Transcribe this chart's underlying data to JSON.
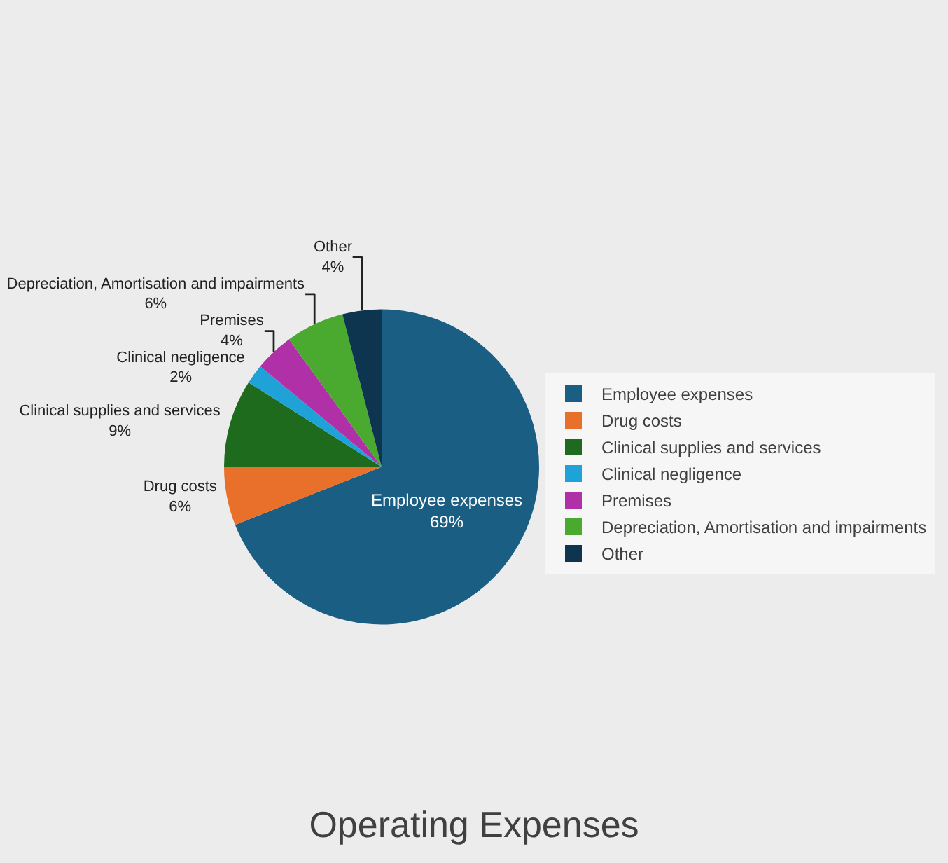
{
  "chart_data": {
    "type": "pie",
    "title": "Operating Expenses",
    "categories": [
      "Employee expenses",
      "Drug costs",
      "Clinical supplies and services",
      "Clinical negligence",
      "Premises",
      "Depreciation, Amortisation and impairments",
      "Other"
    ],
    "values": [
      69,
      6,
      9,
      2,
      4,
      6,
      4
    ],
    "value_labels": [
      "69%",
      "6%",
      "9%",
      "2%",
      "4%",
      "6%",
      "4%"
    ],
    "colors": [
      "#1b5e83",
      "#e8702a",
      "#1e6b1e",
      "#1fa2d8",
      "#b030a8",
      "#4aaa2f",
      "#0e3550"
    ],
    "legend": "right"
  }
}
